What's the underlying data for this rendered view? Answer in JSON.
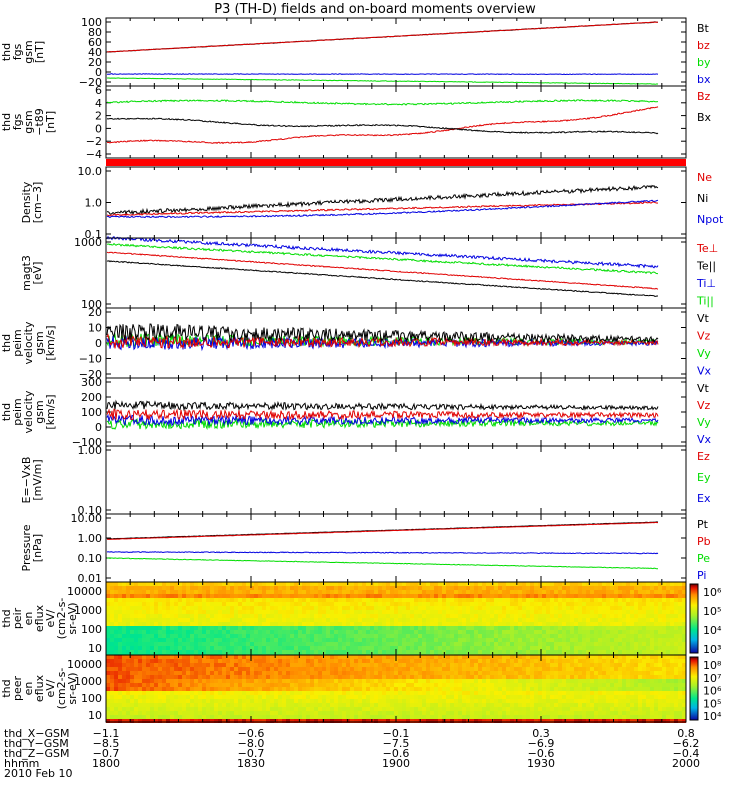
{
  "title": "P3 (TH-D) fields and on-board moments overview",
  "date_label": "2010 Feb 10",
  "colors": {
    "black": "#000000",
    "red": "#e00000",
    "green": "#00dd00",
    "blue": "#0000e0",
    "bar": "#ff0000"
  },
  "chart_data": [
    {
      "type": "line",
      "ylabel": [
        "thd",
        "fgs",
        "gsm",
        "[nT]"
      ],
      "ylim": [
        -20,
        100
      ],
      "ticks": [
        "100",
        "80",
        "60",
        "40",
        "20",
        "0",
        "−20"
      ],
      "legend": [
        {
          "name": "Bt",
          "color": "black"
        },
        {
          "name": "bz",
          "color": "red"
        },
        {
          "name": "by",
          "color": "green"
        },
        {
          "name": "bx",
          "color": "blue"
        }
      ]
    },
    {
      "type": "line",
      "ylabel": [
        "thd",
        "fgs",
        "gsm",
        "−t89",
        "[nT]"
      ],
      "ylim": [
        -4,
        6
      ],
      "ticks": [
        "6",
        "4",
        "2",
        "0",
        "−2",
        "−4"
      ],
      "legend": [
        {
          "name": "Bz",
          "color": "red"
        },
        {
          "name": "Bx",
          "color": "black"
        }
      ]
    },
    {
      "type": "line",
      "ylabel": [
        "Density",
        "[cm−3]"
      ],
      "ylim": [
        0.1,
        10
      ],
      "log": true,
      "ticks": [
        "10.0",
        "1.0",
        "0.1"
      ],
      "legend": [
        {
          "name": "Ne",
          "color": "red"
        },
        {
          "name": "Ni",
          "color": "black"
        },
        {
          "name": "Npot",
          "color": "blue"
        }
      ]
    },
    {
      "type": "line",
      "ylabel": [
        "magt3",
        "[eV]"
      ],
      "ylim": [
        100,
        3000
      ],
      "log": true,
      "ticks": [
        "1000",
        "100"
      ],
      "legend": [
        {
          "name": "Te⊥",
          "color": "red"
        },
        {
          "name": "Te||",
          "color": "black"
        },
        {
          "name": "Ti⊥",
          "color": "blue"
        },
        {
          "name": "Ti||",
          "color": "green"
        }
      ]
    },
    {
      "type": "line",
      "ylabel": [
        "thd",
        "peim",
        "velocity",
        "gsm",
        "[km/s]"
      ],
      "ylim": [
        -30,
        30
      ],
      "ticks": [
        "20",
        "10",
        "0",
        "−10",
        "−20"
      ],
      "legend": [
        {
          "name": "Vt",
          "color": "black"
        },
        {
          "name": "Vz",
          "color": "red"
        },
        {
          "name": "Vy",
          "color": "green"
        },
        {
          "name": "Vx",
          "color": "blue"
        }
      ]
    },
    {
      "type": "line",
      "ylabel": [
        "thd",
        "peim",
        "velocity",
        "gsm",
        "[km/s]"
      ],
      "ylim": [
        -200,
        300
      ],
      "ticks": [
        "300",
        "200",
        "100",
        "0",
        "−100"
      ],
      "legend": [
        {
          "name": "Vt",
          "color": "black"
        },
        {
          "name": "Vz",
          "color": "red"
        },
        {
          "name": "Vy",
          "color": "green"
        },
        {
          "name": "Vx",
          "color": "blue"
        }
      ]
    },
    {
      "type": "line",
      "ylabel": [
        "E=−VxB",
        "[mV/m]"
      ],
      "ylim": [
        0,
        1
      ],
      "ticks": [
        "1.00",
        "0.10"
      ],
      "legend": [
        {
          "name": "Ez",
          "color": "red"
        },
        {
          "name": "Ey",
          "color": "green"
        },
        {
          "name": "Ex",
          "color": "blue"
        }
      ]
    },
    {
      "type": "line",
      "ylabel": [
        "Pressure",
        "[nPa]"
      ],
      "ylim": [
        0.01,
        10
      ],
      "log": true,
      "ticks": [
        "10.00",
        "1.00",
        "0.10",
        "0.01"
      ],
      "legend": [
        {
          "name": "Pt",
          "color": "black"
        },
        {
          "name": "Pb",
          "color": "red"
        },
        {
          "name": "Pe",
          "color": "green"
        },
        {
          "name": "Pi",
          "color": "blue"
        }
      ]
    },
    {
      "type": "heatmap",
      "ylabel": [
        "thd",
        "peir",
        "en",
        "eflux",
        "eV/",
        "(cm2-s-",
        "sr-eV)"
      ],
      "ticks": [
        "10000",
        "1000",
        "100",
        "10"
      ],
      "colorbar": [
        "10⁶",
        "10⁵",
        "10⁴",
        "10³"
      ]
    },
    {
      "type": "heatmap",
      "ylabel": [
        "thd",
        "peer",
        "en",
        "eflux",
        "eV/",
        "(cm2-s-",
        "sr-eV)"
      ],
      "ticks": [
        "10000",
        "1000",
        "100",
        "10"
      ],
      "colorbar": [
        "10⁸",
        "10⁷",
        "10⁶",
        "10⁵",
        "10⁴"
      ]
    }
  ],
  "xaxis": {
    "rows": [
      {
        "label": "thd_X−GSM",
        "values": [
          "−1.1",
          "−0.6",
          "−0.1",
          "0.3",
          "0.8"
        ]
      },
      {
        "label": "thd_Y−GSM",
        "values": [
          "−8.5",
          "−8.0",
          "−7.5",
          "−6.9",
          "−6.2"
        ]
      },
      {
        "label": "thd_Z−GSM",
        "values": [
          "−0.7",
          "−0.7",
          "−0.6",
          "−0.6",
          "−0.4"
        ]
      },
      {
        "label": "hhmm",
        "values": [
          "1800",
          "1830",
          "1900",
          "1930",
          "2000"
        ]
      }
    ]
  }
}
